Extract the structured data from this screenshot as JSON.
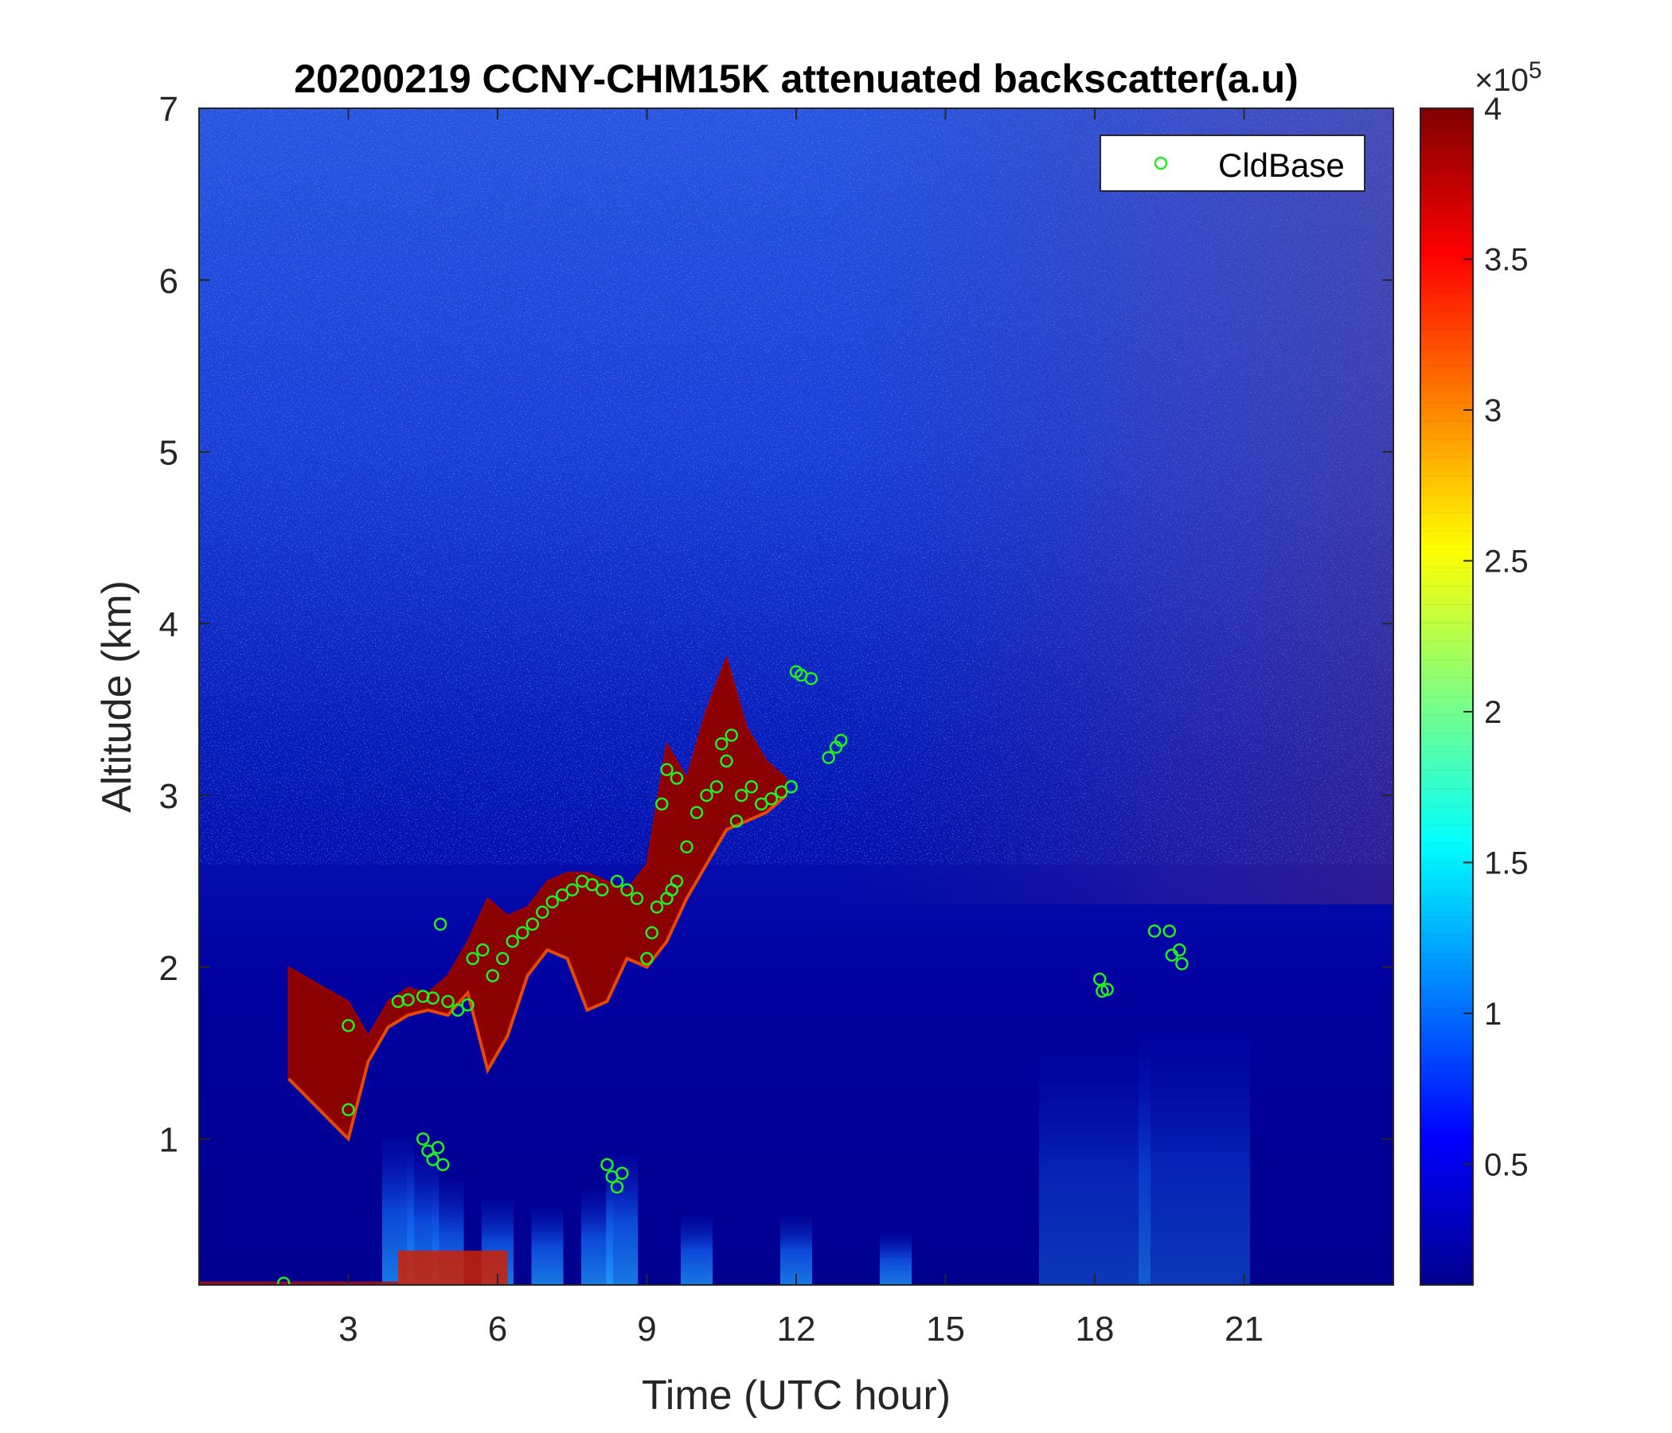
{
  "chart_data": {
    "type": "heatmap",
    "title": "20200219 CCNY-CHM15K attenuated backscatter(a.u)",
    "xlabel": "Time (UTC hour)",
    "ylabel": "Altitude (km)",
    "xlim": [
      0,
      24
    ],
    "ylim": [
      0.15,
      7
    ],
    "xticks": [
      "3",
      "6",
      "9",
      "12",
      "15",
      "18",
      "21"
    ],
    "yticks": [
      "1",
      "2",
      "3",
      "4",
      "5",
      "6",
      "7"
    ],
    "colorbar": {
      "range": [
        0.1,
        4
      ],
      "ticks": [
        "0.5",
        "1",
        "1.5",
        "2",
        "2.5",
        "3",
        "3.5",
        "4"
      ],
      "exponent_label": "×10",
      "exponent": "5",
      "colormap": "jet"
    },
    "legend": {
      "placement": "top-right",
      "entries": [
        "CldBase"
      ]
    },
    "cloud_layer": [
      [
        1.8,
        1.35,
        2.0
      ],
      [
        3.0,
        1.0,
        1.8
      ],
      [
        3.4,
        1.45,
        1.6
      ],
      [
        3.8,
        1.65,
        1.8
      ],
      [
        4.2,
        1.72,
        1.88
      ],
      [
        4.6,
        1.75,
        1.85
      ],
      [
        5.0,
        1.72,
        1.95
      ],
      [
        5.4,
        1.85,
        2.15
      ],
      [
        5.8,
        1.4,
        2.4
      ],
      [
        6.2,
        1.6,
        2.3
      ],
      [
        6.6,
        1.95,
        2.35
      ],
      [
        7.0,
        2.1,
        2.5
      ],
      [
        7.4,
        2.05,
        2.55
      ],
      [
        7.8,
        1.75,
        2.55
      ],
      [
        8.2,
        1.8,
        2.5
      ],
      [
        8.6,
        2.05,
        2.45
      ],
      [
        9.0,
        2.0,
        2.6
      ],
      [
        9.4,
        2.15,
        3.3
      ],
      [
        9.8,
        2.4,
        3.1
      ],
      [
        10.2,
        2.6,
        3.5
      ],
      [
        10.6,
        2.8,
        3.8
      ],
      [
        11.0,
        2.85,
        3.4
      ],
      [
        11.4,
        2.9,
        3.2
      ],
      [
        11.8,
        3.0,
        3.1
      ]
    ],
    "cloud_base_points": [
      [
        1.7,
        0.16
      ],
      [
        3.0,
        1.66
      ],
      [
        3.0,
        1.17
      ],
      [
        4.0,
        1.8
      ],
      [
        4.2,
        1.81
      ],
      [
        4.5,
        1.83
      ],
      [
        4.7,
        1.82
      ],
      [
        4.5,
        1.0
      ],
      [
        4.6,
        0.93
      ],
      [
        4.7,
        0.88
      ],
      [
        4.8,
        0.95
      ],
      [
        4.9,
        0.85
      ],
      [
        4.85,
        2.25
      ],
      [
        5.0,
        1.8
      ],
      [
        5.2,
        1.75
      ],
      [
        5.4,
        1.78
      ],
      [
        5.5,
        2.05
      ],
      [
        5.7,
        2.1
      ],
      [
        5.9,
        1.95
      ],
      [
        6.1,
        2.05
      ],
      [
        6.3,
        2.15
      ],
      [
        6.5,
        2.2
      ],
      [
        6.7,
        2.25
      ],
      [
        6.9,
        2.32
      ],
      [
        7.1,
        2.38
      ],
      [
        7.3,
        2.42
      ],
      [
        7.5,
        2.45
      ],
      [
        7.7,
        2.5
      ],
      [
        7.9,
        2.48
      ],
      [
        8.1,
        2.45
      ],
      [
        8.2,
        0.85
      ],
      [
        8.3,
        0.78
      ],
      [
        8.4,
        0.72
      ],
      [
        8.5,
        0.8
      ],
      [
        8.4,
        2.5
      ],
      [
        8.6,
        2.45
      ],
      [
        8.8,
        2.4
      ],
      [
        9.0,
        2.05
      ],
      [
        9.1,
        2.2
      ],
      [
        9.2,
        2.35
      ],
      [
        9.4,
        2.4
      ],
      [
        9.5,
        2.45
      ],
      [
        9.6,
        2.5
      ],
      [
        9.3,
        2.95
      ],
      [
        9.4,
        3.15
      ],
      [
        9.6,
        3.1
      ],
      [
        9.8,
        2.7
      ],
      [
        10.0,
        2.9
      ],
      [
        10.2,
        3.0
      ],
      [
        10.4,
        3.05
      ],
      [
        10.5,
        3.3
      ],
      [
        10.6,
        3.2
      ],
      [
        10.7,
        3.35
      ],
      [
        10.8,
        2.85
      ],
      [
        10.9,
        3.0
      ],
      [
        11.1,
        3.05
      ],
      [
        11.3,
        2.95
      ],
      [
        11.5,
        2.98
      ],
      [
        11.7,
        3.02
      ],
      [
        11.9,
        3.05
      ],
      [
        12.0,
        3.72
      ],
      [
        12.1,
        3.7
      ],
      [
        12.3,
        3.68
      ],
      [
        12.65,
        3.22
      ],
      [
        12.8,
        3.28
      ],
      [
        12.9,
        3.32
      ],
      [
        18.1,
        1.93
      ],
      [
        18.15,
        1.86
      ],
      [
        18.25,
        1.87
      ],
      [
        19.2,
        2.21
      ],
      [
        19.5,
        2.21
      ],
      [
        19.55,
        2.07
      ],
      [
        19.7,
        2.1
      ],
      [
        19.75,
        2.02
      ]
    ],
    "low_aerosol_layers": [
      [
        4.0,
        0.15,
        1.0
      ],
      [
        4.5,
        0.15,
        0.9
      ],
      [
        5.0,
        0.15,
        0.75
      ],
      [
        6.0,
        0.15,
        0.65
      ],
      [
        7.0,
        0.15,
        0.6
      ],
      [
        8.0,
        0.15,
        0.7
      ],
      [
        8.5,
        0.15,
        0.9
      ],
      [
        10.0,
        0.15,
        0.55
      ],
      [
        12.0,
        0.15,
        0.55
      ],
      [
        14.0,
        0.15,
        0.45
      ],
      [
        18.0,
        0.15,
        1.5
      ],
      [
        20.0,
        0.15,
        1.6
      ]
    ]
  }
}
